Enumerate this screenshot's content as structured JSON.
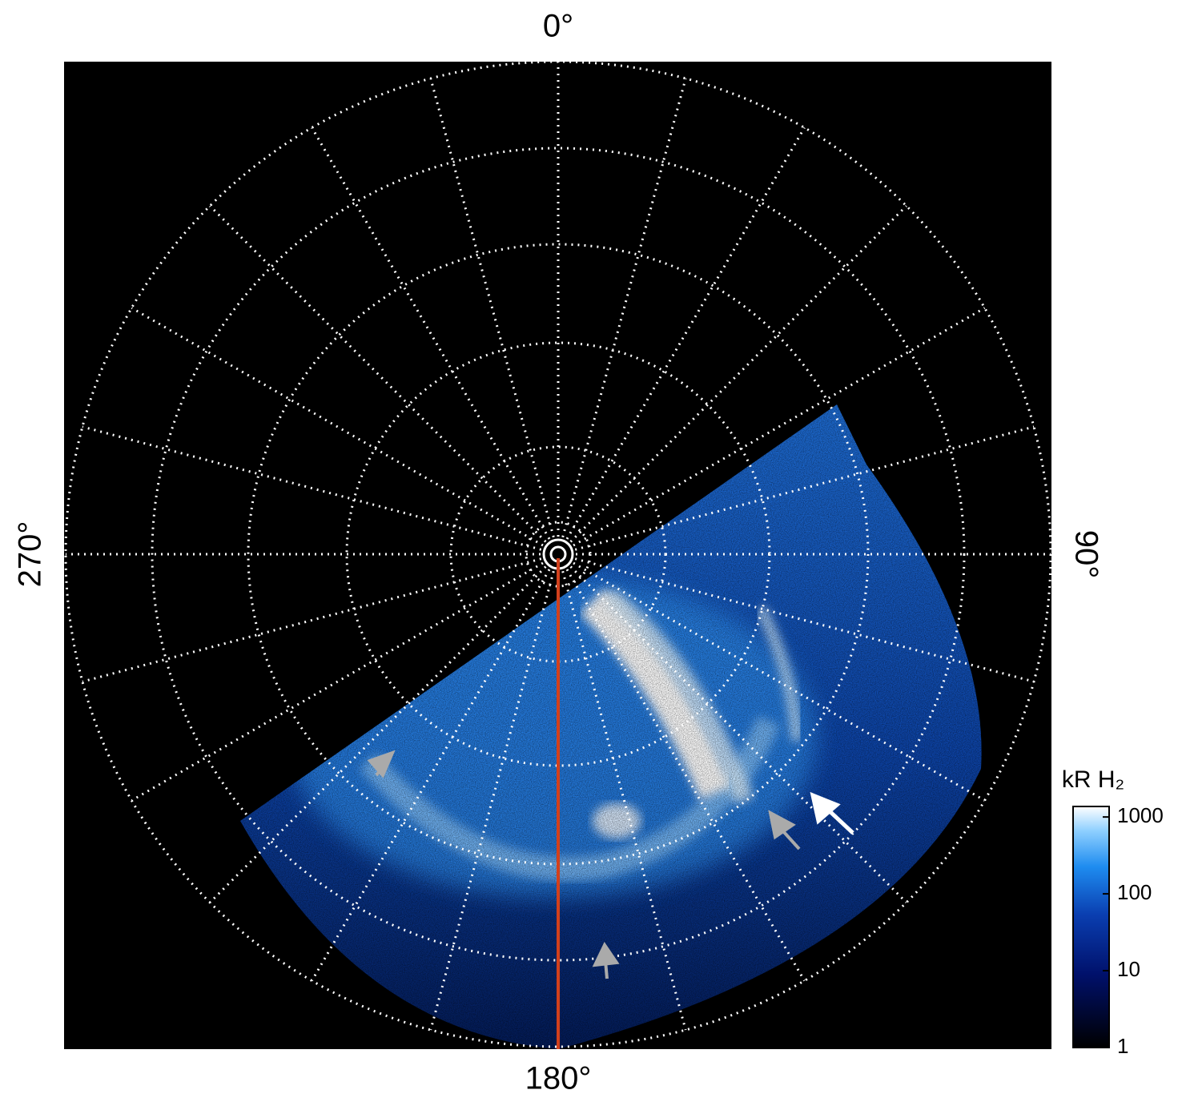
{
  "chart_data": {
    "type": "polar-image",
    "angle_ticks": [
      {
        "value": 0,
        "label": "0°"
      },
      {
        "value": 90,
        "label": "90°"
      },
      {
        "value": 180,
        "label": "180°"
      },
      {
        "value": 270,
        "label": "270°"
      }
    ],
    "colorbar": {
      "title": "kR H₂",
      "log_scale": true,
      "lim": [
        1,
        1370
      ],
      "ticks": [
        1,
        10,
        100,
        1000
      ]
    }
  }
}
